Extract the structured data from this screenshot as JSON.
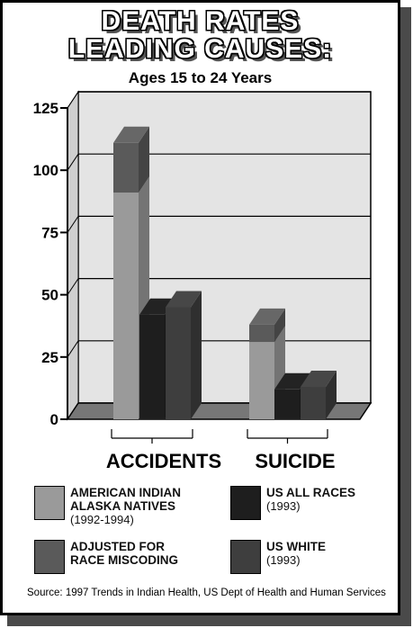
{
  "title_line1": "DEATH RATES",
  "title_line2": "LEADING CAUSES:",
  "subtitle": "Ages 15 to 24 Years",
  "source": "Source:  1997 Trends in Indian Health, US Dept of Health and Human Services",
  "colors": {
    "american_indian": "#9a9a9a",
    "adjusted": "#5a5a5a",
    "us_all_races": "#1e1e1e",
    "us_white": "#3e3e3e",
    "floor": "#777777",
    "wall": "#e4e4e4"
  },
  "legend": {
    "american_indian": {
      "line1": "AMERICAN INDIAN",
      "line2": "ALASKA NATIVES",
      "line3": "(1992-1994)"
    },
    "adjusted": {
      "line1": "ADJUSTED FOR",
      "line2": "RACE MISCODING"
    },
    "us_all_races": {
      "line1": "US ALL RACES",
      "line2": "(1993)"
    },
    "us_white": {
      "line1": "US WHITE",
      "line2": "(1993)"
    }
  },
  "chart_data": {
    "type": "bar",
    "title": "DEATH RATES LEADING CAUSES:",
    "subtitle": "Ages 15 to 24 Years",
    "xlabel": "",
    "ylabel": "",
    "categories": [
      "ACCIDENTS",
      "SUICIDE"
    ],
    "ylim": [
      0,
      125
    ],
    "yticks": [
      "0",
      "25",
      "50",
      "75",
      "100",
      "125"
    ],
    "grid": true,
    "series": [
      {
        "name": "AMERICAN INDIAN ALASKA NATIVES (1992-1994)",
        "values": [
          91,
          31
        ]
      },
      {
        "name": "ADJUSTED FOR RACE MISCODING",
        "values": [
          20,
          7
        ]
      },
      {
        "name": "US ALL RACES (1993)",
        "values": [
          42,
          12
        ]
      },
      {
        "name": "US WHITE (1993)",
        "values": [
          45,
          13
        ]
      }
    ]
  }
}
